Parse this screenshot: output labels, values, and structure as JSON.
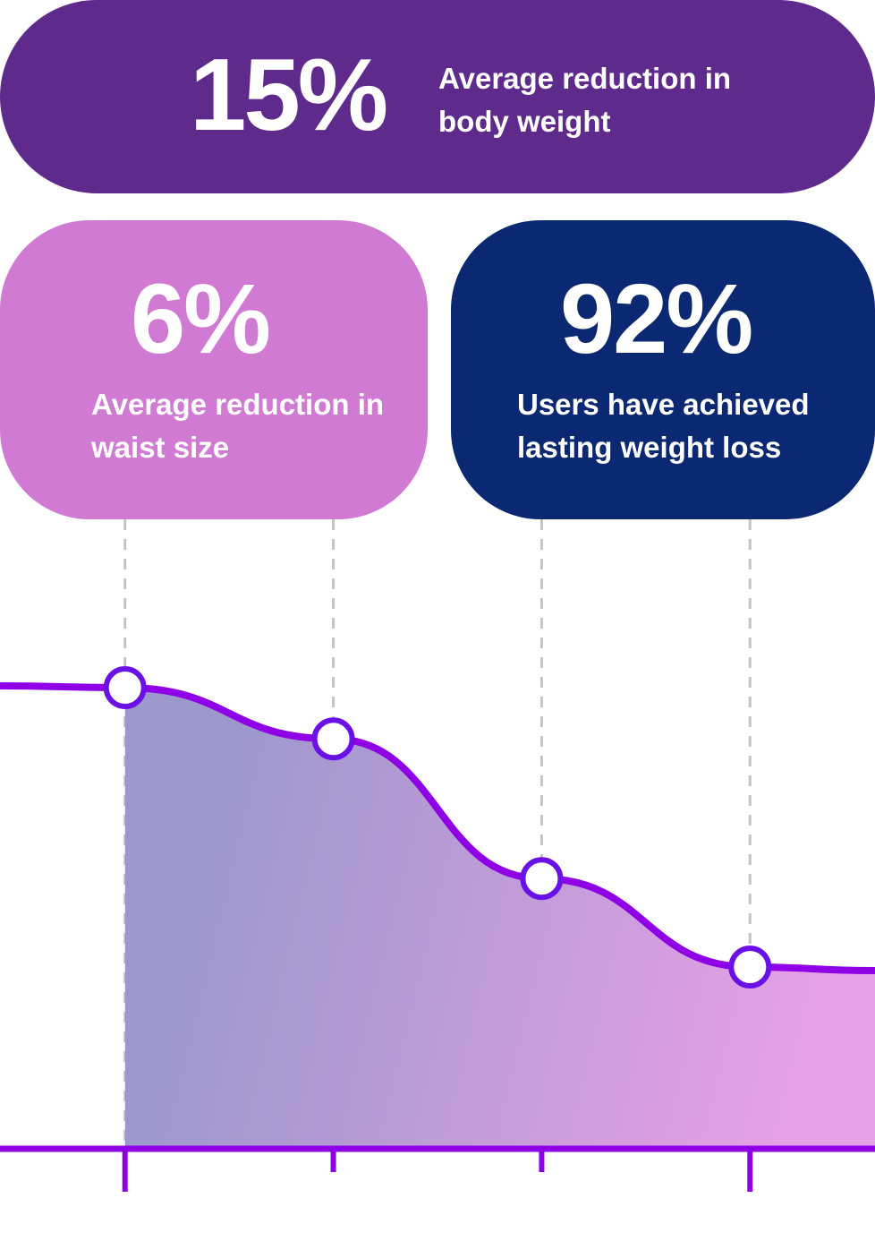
{
  "stats": [
    {
      "value": "15%",
      "label": "Average reduction in body weight",
      "color": "#5e2a8c"
    },
    {
      "value": "6%",
      "label": "Average reduction in waist size",
      "color": "#d17ad3"
    },
    {
      "value": "92%",
      "label": "Users have achieved lasting weight loss",
      "color": "#0b2872"
    }
  ],
  "chart_data": {
    "type": "line",
    "series": [
      {
        "points": [
          {
            "x": 1,
            "y": 100
          },
          {
            "x": 2,
            "y": 89
          },
          {
            "x": 3,
            "y": 59
          },
          {
            "x": 4,
            "y": 40
          }
        ]
      }
    ],
    "x_ticks": [
      1,
      2,
      3,
      4
    ],
    "xlim": [
      0.4,
      4.6
    ],
    "ylim": [
      0,
      105
    ],
    "line_color": "#9000e6",
    "marker_stroke": "#6a11e8",
    "area_gradient": [
      "#9c98cc",
      "#e6a0e6"
    ],
    "guide_color": "#c4c4c4",
    "grid": false,
    "legend": "none"
  }
}
